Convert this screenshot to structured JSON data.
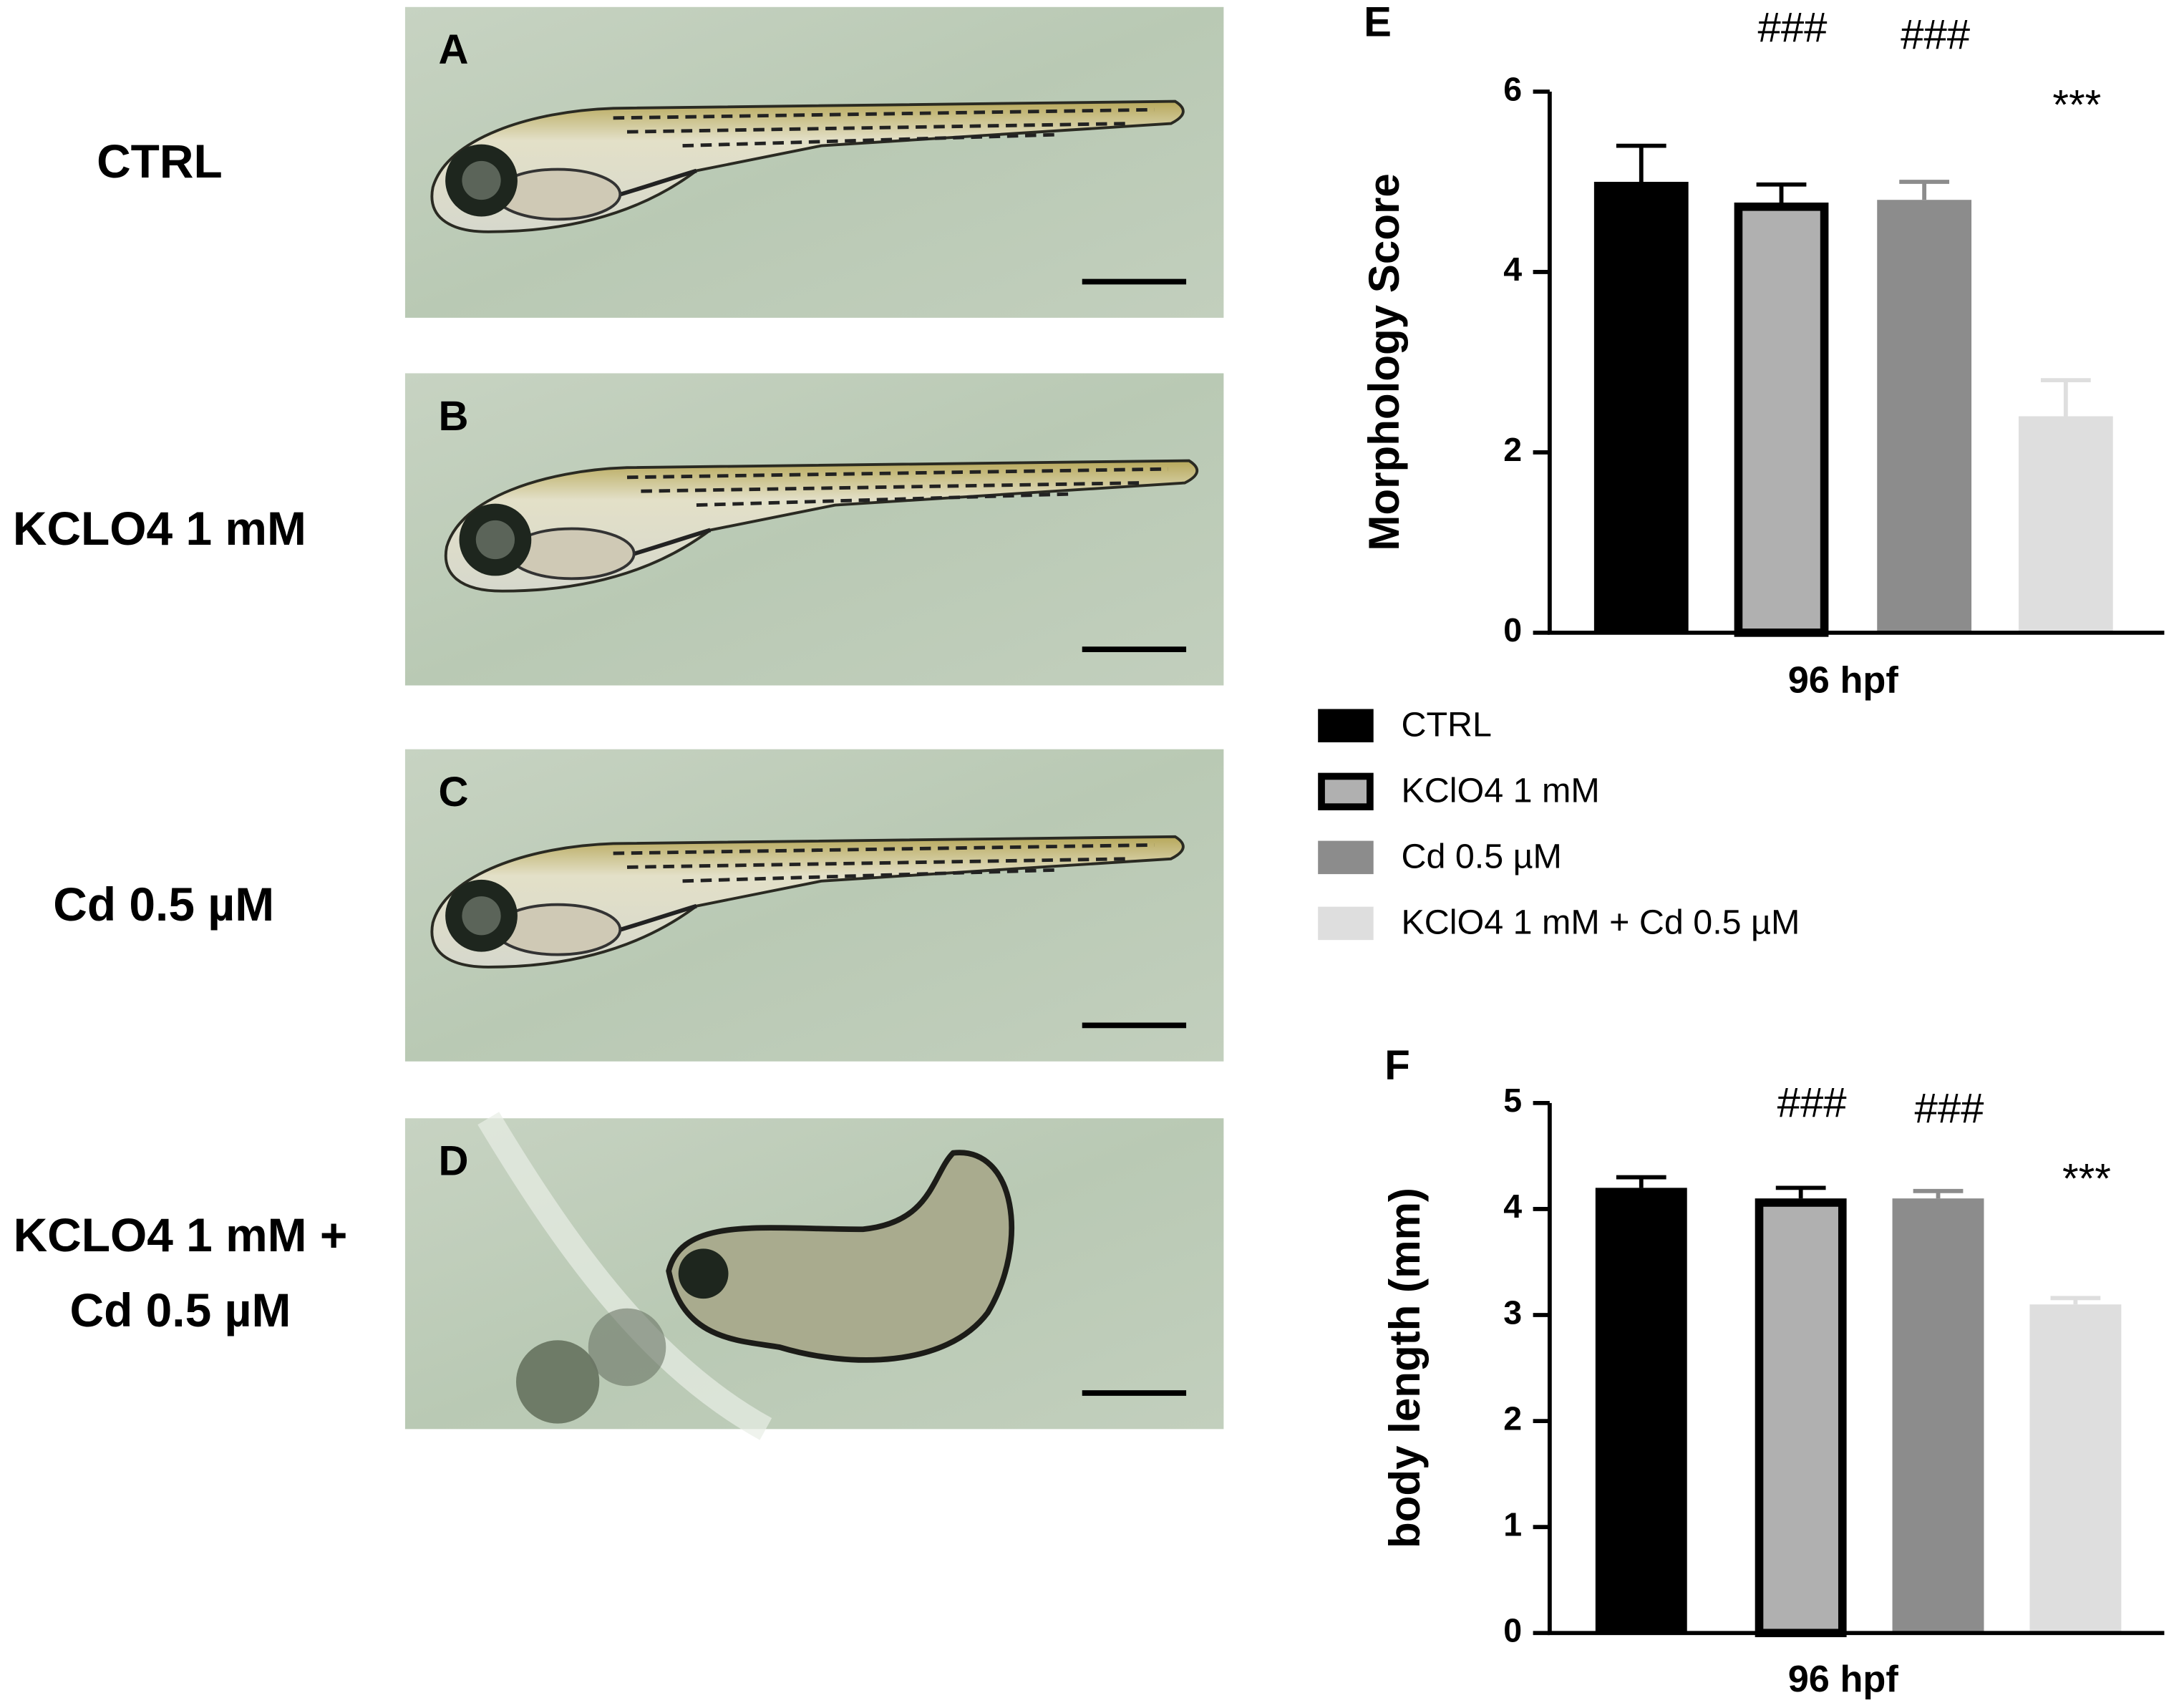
{
  "panels": [
    {
      "letter": "A",
      "label": [
        "CTRL"
      ]
    },
    {
      "letter": "B",
      "label": [
        "KCLO4 1 mM"
      ]
    },
    {
      "letter": "C",
      "label": [
        "Cd 0.5 µM"
      ]
    },
    {
      "letter": "D",
      "label": [
        "KCLO4 1 mM +",
        "Cd 0.5 µM"
      ]
    }
  ],
  "chart_data": [
    {
      "type": "bar",
      "panel": "E",
      "y_label": "Morphology Score",
      "categories": [
        "96 hpf"
      ],
      "ylim": [
        0,
        6
      ],
      "yticks": [
        0,
        2,
        4,
        6
      ],
      "series": [
        {
          "name": "CTRL",
          "color": "#000000",
          "values": [
            5.0
          ],
          "errors": [
            0.4
          ]
        },
        {
          "name": "KClO4 1 mM",
          "color": "#b0b0b0",
          "edgecolor": "#000000",
          "values": [
            4.77
          ],
          "errors": [
            0.2
          ],
          "annotation": "###"
        },
        {
          "name": "Cd 0.5 µM",
          "color": "#8c8c8c",
          "values": [
            4.8
          ],
          "errors": [
            0.2
          ],
          "annotation": "###"
        },
        {
          "name": "KClO4 1 mM + Cd 0.5 µM",
          "color": "#dedede",
          "values": [
            2.4
          ],
          "errors": [
            0.4
          ],
          "annotation": "***"
        }
      ]
    },
    {
      "type": "bar",
      "panel": "F",
      "y_label": "body length (mm)",
      "categories": [
        "96 hpf"
      ],
      "ylim": [
        0,
        5
      ],
      "yticks": [
        0,
        1,
        2,
        3,
        4,
        5
      ],
      "series": [
        {
          "color": "#000000",
          "values": [
            4.2
          ],
          "errors": [
            0.1
          ]
        },
        {
          "color": "#b0b0b0",
          "edgecolor": "#000000",
          "values": [
            4.1
          ],
          "errors": [
            0.1
          ],
          "annotation": "###"
        },
        {
          "color": "#8c8c8c",
          "values": [
            4.1
          ],
          "errors": [
            0.07
          ],
          "annotation": "###"
        },
        {
          "color": "#dedede",
          "values": [
            3.1
          ],
          "errors": [
            0.06
          ],
          "annotation": "***"
        }
      ]
    }
  ]
}
